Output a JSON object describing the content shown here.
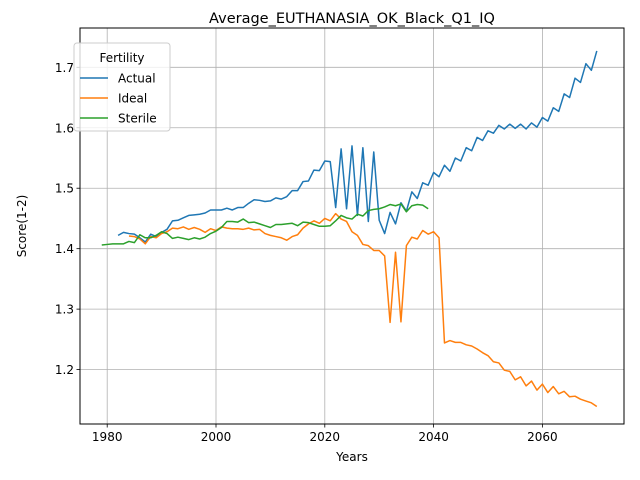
{
  "chart_data": {
    "type": "line",
    "title": "Average_EUTHANASIA_OK_Black_Q1_IQ",
    "xlabel": "Years",
    "ylabel": "Score(1-2)",
    "xlim": [
      1975,
      2075
    ],
    "ylim": [
      1.11,
      1.765
    ],
    "xticks": [
      1980,
      2000,
      2020,
      2040,
      2060
    ],
    "yticks": [
      1.2,
      1.3,
      1.4,
      1.5,
      1.6,
      1.7
    ],
    "grid": true,
    "legend": {
      "title": "Fertility",
      "placement": "top-left"
    },
    "series": [
      {
        "name": "Actual",
        "color": "#1f77b4",
        "x": [
          1982,
          1983,
          1984,
          1985,
          1986,
          1987,
          1988,
          1989,
          1990,
          1991,
          1992,
          1993,
          1994,
          1995,
          1996,
          1997,
          1998,
          1999,
          2000,
          2001,
          2002,
          2003,
          2004,
          2005,
          2006,
          2007,
          2008,
          2009,
          2010,
          2011,
          2012,
          2013,
          2014,
          2015,
          2016,
          2017,
          2018,
          2019,
          2020,
          2021,
          2022,
          2023,
          2024,
          2025,
          2026,
          2027,
          2028,
          2029,
          2030,
          2031,
          2032,
          2033,
          2034,
          2035,
          2036,
          2037,
          2038,
          2039,
          2040,
          2041,
          2042,
          2043,
          2044,
          2045,
          2046,
          2047,
          2048,
          2049,
          2050,
          2051,
          2052,
          2053,
          2054,
          2055,
          2056,
          2057,
          2058,
          2059,
          2060,
          2061,
          2062,
          2063,
          2064,
          2065,
          2066,
          2067,
          2068,
          2069,
          2070
        ],
        "values": [
          1.422,
          1.427,
          1.425,
          1.424,
          1.418,
          1.411,
          1.424,
          1.42,
          1.427,
          1.432,
          1.446,
          1.447,
          1.451,
          1.455,
          1.456,
          1.457,
          1.459,
          1.464,
          1.464,
          1.464,
          1.467,
          1.464,
          1.468,
          1.468,
          1.475,
          1.481,
          1.48,
          1.478,
          1.479,
          1.484,
          1.482,
          1.486,
          1.496,
          1.496,
          1.511,
          1.512,
          1.53,
          1.529,
          1.545,
          1.544,
          1.468,
          1.565,
          1.466,
          1.57,
          1.455,
          1.567,
          1.445,
          1.56,
          1.447,
          1.425,
          1.46,
          1.441,
          1.476,
          1.462,
          1.494,
          1.483,
          1.509,
          1.505,
          1.526,
          1.519,
          1.538,
          1.528,
          1.55,
          1.545,
          1.567,
          1.562,
          1.584,
          1.579,
          1.595,
          1.591,
          1.604,
          1.598,
          1.606,
          1.599,
          1.606,
          1.598,
          1.608,
          1.601,
          1.617,
          1.611,
          1.633,
          1.627,
          1.656,
          1.65,
          1.682,
          1.675,
          1.706,
          1.695,
          1.727
        ]
      },
      {
        "name": "Ideal",
        "color": "#ff7f0e",
        "x": [
          1984,
          1985,
          1986,
          1987,
          1988,
          1989,
          1990,
          1991,
          1992,
          1993,
          1994,
          1995,
          1996,
          1997,
          1998,
          1999,
          2000,
          2001,
          2002,
          2003,
          2004,
          2005,
          2006,
          2007,
          2008,
          2009,
          2010,
          2011,
          2012,
          2013,
          2014,
          2015,
          2016,
          2017,
          2018,
          2019,
          2020,
          2021,
          2022,
          2023,
          2024,
          2025,
          2026,
          2027,
          2028,
          2029,
          2030,
          2031,
          2032,
          2033,
          2034,
          2035,
          2036,
          2037,
          2038,
          2039,
          2040,
          2041,
          2042,
          2043,
          2044,
          2045,
          2046,
          2047,
          2048,
          2049,
          2050,
          2051,
          2052,
          2053,
          2054,
          2055,
          2056,
          2057,
          2058,
          2059,
          2060,
          2061,
          2062,
          2063,
          2064,
          2065,
          2066,
          2067,
          2068,
          2069,
          2070
        ],
        "values": [
          1.421,
          1.42,
          1.416,
          1.408,
          1.42,
          1.418,
          1.425,
          1.428,
          1.434,
          1.433,
          1.436,
          1.432,
          1.435,
          1.432,
          1.427,
          1.433,
          1.43,
          1.436,
          1.434,
          1.433,
          1.433,
          1.432,
          1.434,
          1.431,
          1.432,
          1.425,
          1.422,
          1.42,
          1.418,
          1.414,
          1.42,
          1.423,
          1.434,
          1.441,
          1.446,
          1.442,
          1.45,
          1.446,
          1.458,
          1.449,
          1.445,
          1.428,
          1.422,
          1.407,
          1.405,
          1.397,
          1.397,
          1.388,
          1.278,
          1.394,
          1.279,
          1.405,
          1.419,
          1.416,
          1.43,
          1.424,
          1.428,
          1.418,
          1.244,
          1.248,
          1.245,
          1.245,
          1.241,
          1.239,
          1.234,
          1.228,
          1.223,
          1.213,
          1.211,
          1.199,
          1.197,
          1.183,
          1.188,
          1.173,
          1.181,
          1.166,
          1.176,
          1.162,
          1.172,
          1.16,
          1.164,
          1.155,
          1.156,
          1.151,
          1.148,
          1.145,
          1.139
        ]
      },
      {
        "name": "Sterile",
        "color": "#2ca02c",
        "x": [
          1979,
          1980,
          1981,
          1982,
          1983,
          1984,
          1985,
          1986,
          1987,
          1988,
          1989,
          1990,
          1991,
          1992,
          1993,
          1994,
          1995,
          1996,
          1997,
          1998,
          1999,
          2000,
          2001,
          2002,
          2003,
          2004,
          2005,
          2006,
          2007,
          2008,
          2009,
          2010,
          2011,
          2012,
          2013,
          2014,
          2015,
          2016,
          2017,
          2018,
          2019,
          2020,
          2021,
          2022,
          2023,
          2024,
          2025,
          2026,
          2027,
          2028,
          2029,
          2030,
          2031,
          2032,
          2033,
          2034,
          2035,
          2036,
          2037,
          2038,
          2039
        ],
        "values": [
          1.406,
          1.407,
          1.408,
          1.408,
          1.408,
          1.412,
          1.41,
          1.423,
          1.418,
          1.418,
          1.422,
          1.428,
          1.425,
          1.417,
          1.419,
          1.417,
          1.415,
          1.418,
          1.416,
          1.419,
          1.425,
          1.429,
          1.435,
          1.445,
          1.445,
          1.444,
          1.449,
          1.443,
          1.444,
          1.441,
          1.438,
          1.435,
          1.44,
          1.44,
          1.441,
          1.442,
          1.438,
          1.444,
          1.443,
          1.44,
          1.437,
          1.437,
          1.438,
          1.446,
          1.455,
          1.451,
          1.449,
          1.457,
          1.454,
          1.463,
          1.465,
          1.466,
          1.469,
          1.473,
          1.471,
          1.474,
          1.461,
          1.471,
          1.473,
          1.472,
          1.466
        ]
      }
    ]
  }
}
